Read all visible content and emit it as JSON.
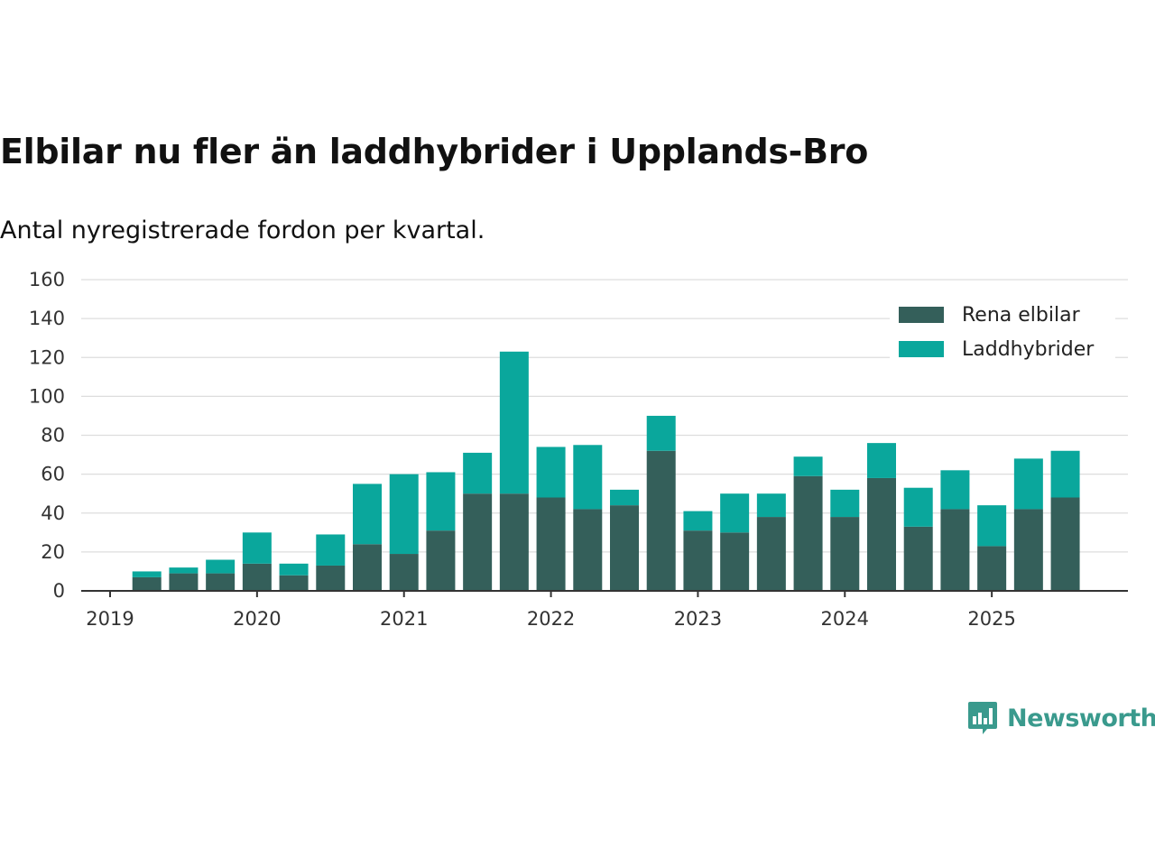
{
  "title": "Elbilar nu fler än laddhybrider i Upplands-Bro",
  "subtitle": "Antal nyregistrerade fordon per kvartal.",
  "brand": {
    "name": "Newsworthy",
    "color": "#3a9a8d"
  },
  "chart_data": {
    "type": "bar",
    "stacked": true,
    "x_start": 2019.0,
    "x_end": 2026.0,
    "ylim": [
      0,
      160
    ],
    "yticks": [
      0,
      20,
      40,
      60,
      80,
      100,
      120,
      140,
      160
    ],
    "xticks": [
      "2019",
      "2020",
      "2021",
      "2022",
      "2023",
      "2024",
      "2025"
    ],
    "grid": true,
    "legend_position": "top-right",
    "quarters": [
      "2019 Q2",
      "2019 Q3",
      "2019 Q4",
      "2020 Q1",
      "2020 Q2",
      "2020 Q3",
      "2020 Q4",
      "2021 Q1",
      "2021 Q2",
      "2021 Q3",
      "2021 Q4",
      "2022 Q1",
      "2022 Q2",
      "2022 Q3",
      "2022 Q4",
      "2023 Q1",
      "2023 Q2",
      "2023 Q3",
      "2023 Q4",
      "2024 Q1",
      "2024 Q2",
      "2024 Q3",
      "2024 Q4",
      "2025 Q1",
      "2025 Q2",
      "2025 Q3"
    ],
    "series": [
      {
        "name": "Rena elbilar",
        "color": "#345f5a",
        "values": [
          7,
          9,
          9,
          14,
          8,
          13,
          24,
          19,
          31,
          50,
          50,
          48,
          42,
          44,
          72,
          31,
          30,
          38,
          59,
          38,
          58,
          33,
          42,
          23,
          42,
          48
        ]
      },
      {
        "name": "Laddhybrider",
        "color": "#0aa79c",
        "values": [
          3,
          3,
          7,
          16,
          6,
          16,
          31,
          41,
          30,
          21,
          73,
          26,
          33,
          8,
          18,
          10,
          20,
          12,
          10,
          14,
          18,
          20,
          20,
          21,
          26,
          24
        ]
      }
    ]
  }
}
